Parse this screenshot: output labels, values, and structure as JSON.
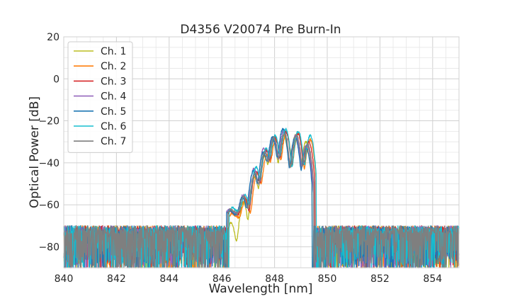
{
  "chart_data": {
    "type": "line",
    "title": "D4356 V20074 Pre Burn-In",
    "xlabel": "Wavelength [nm]",
    "ylabel": "Optical Power [dB]",
    "xlim": [
      840,
      855
    ],
    "ylim": [
      -90,
      20
    ],
    "xticks": [
      840,
      842,
      844,
      846,
      848,
      850,
      852,
      854
    ],
    "yticks": [
      -80,
      -60,
      -40,
      -20,
      0,
      20
    ],
    "ytick_labels": [
      "−80",
      "−60",
      "−40",
      "−20",
      "0",
      "20"
    ],
    "grid": true,
    "legend_position": "top-left",
    "noise_floor_db": -72,
    "series": [
      {
        "name": "Ch. 1",
        "color": "#bcbd22",
        "peaks": [
          {
            "x": 846.35,
            "y": -69
          },
          {
            "x": 846.82,
            "y": -59
          },
          {
            "x": 847.25,
            "y": -47
          },
          {
            "x": 847.62,
            "y": -37
          },
          {
            "x": 847.95,
            "y": -30
          },
          {
            "x": 848.35,
            "y": -27
          },
          {
            "x": 848.8,
            "y": -27
          },
          {
            "x": 849.2,
            "y": -30
          }
        ],
        "edges": [
          846.2,
          849.45
        ],
        "dip_min": -79
      },
      {
        "name": "Ch. 2",
        "color": "#ff7f0e",
        "peaks": [
          {
            "x": 846.4,
            "y": -69
          },
          {
            "x": 846.9,
            "y": -58
          },
          {
            "x": 847.35,
            "y": -45
          },
          {
            "x": 847.72,
            "y": -36
          },
          {
            "x": 848.05,
            "y": -29
          },
          {
            "x": 848.45,
            "y": -26
          },
          {
            "x": 848.9,
            "y": -26
          },
          {
            "x": 849.35,
            "y": -29
          }
        ],
        "edges": [
          846.25,
          849.6
        ],
        "dip_min": -66
      },
      {
        "name": "Ch. 3",
        "color": "#d62728",
        "peaks": [
          {
            "x": 846.35,
            "y": -68
          },
          {
            "x": 846.85,
            "y": -57
          },
          {
            "x": 847.3,
            "y": -44
          },
          {
            "x": 847.68,
            "y": -34
          },
          {
            "x": 848.02,
            "y": -28
          },
          {
            "x": 848.42,
            "y": -25
          },
          {
            "x": 848.88,
            "y": -26
          },
          {
            "x": 849.3,
            "y": -30
          }
        ],
        "edges": [
          846.2,
          849.55
        ],
        "dip_min": -65
      },
      {
        "name": "Ch. 4",
        "color": "#9467bd",
        "peaks": [
          {
            "x": 846.3,
            "y": -67
          },
          {
            "x": 846.8,
            "y": -56
          },
          {
            "x": 847.22,
            "y": -43
          },
          {
            "x": 847.6,
            "y": -33
          },
          {
            "x": 847.95,
            "y": -28
          },
          {
            "x": 848.35,
            "y": -25
          },
          {
            "x": 848.8,
            "y": -27
          },
          {
            "x": 849.22,
            "y": -31
          }
        ],
        "edges": [
          846.15,
          849.5
        ],
        "dip_min": -64
      },
      {
        "name": "Ch. 5",
        "color": "#1f77b4",
        "peaks": [
          {
            "x": 846.3,
            "y": -66
          },
          {
            "x": 846.78,
            "y": -57
          },
          {
            "x": 847.2,
            "y": -44
          },
          {
            "x": 847.58,
            "y": -35
          },
          {
            "x": 847.92,
            "y": -28
          },
          {
            "x": 848.32,
            "y": -24
          },
          {
            "x": 848.78,
            "y": -28
          },
          {
            "x": 849.2,
            "y": -33
          }
        ],
        "edges": [
          846.15,
          849.45
        ],
        "dip_min": -65
      },
      {
        "name": "Ch. 6",
        "color": "#17becf",
        "peaks": [
          {
            "x": 846.4,
            "y": -66
          },
          {
            "x": 846.88,
            "y": -56
          },
          {
            "x": 847.3,
            "y": -42
          },
          {
            "x": 847.68,
            "y": -33
          },
          {
            "x": 848.02,
            "y": -27
          },
          {
            "x": 848.42,
            "y": -24
          },
          {
            "x": 848.9,
            "y": -25
          },
          {
            "x": 849.35,
            "y": -27
          }
        ],
        "edges": [
          846.25,
          849.6
        ],
        "dip_min": -63
      },
      {
        "name": "Ch. 7",
        "color": "#7f7f7f",
        "peaks": [
          {
            "x": 846.35,
            "y": -67
          },
          {
            "x": 846.82,
            "y": -57
          },
          {
            "x": 847.25,
            "y": -45
          },
          {
            "x": 847.63,
            "y": -35
          },
          {
            "x": 847.97,
            "y": -28
          },
          {
            "x": 848.37,
            "y": -26
          },
          {
            "x": 848.83,
            "y": -27
          },
          {
            "x": 849.25,
            "y": -31
          }
        ],
        "edges": [
          846.2,
          849.5
        ],
        "dip_min": -64
      }
    ]
  }
}
